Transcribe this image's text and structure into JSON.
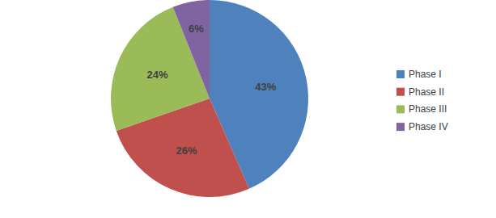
{
  "chart_data": {
    "type": "pie",
    "categories": [
      "Phase I",
      "Phase II",
      "Phase III",
      "Phase IV"
    ],
    "values": [
      43,
      26,
      24,
      6
    ],
    "value_labels": [
      "43%",
      "26%",
      "24%",
      "6%"
    ],
    "colors": [
      "#4f81bd",
      "#c0504d",
      "#9bbb59",
      "#8064a2"
    ],
    "data_labels": true,
    "legend": "right"
  }
}
